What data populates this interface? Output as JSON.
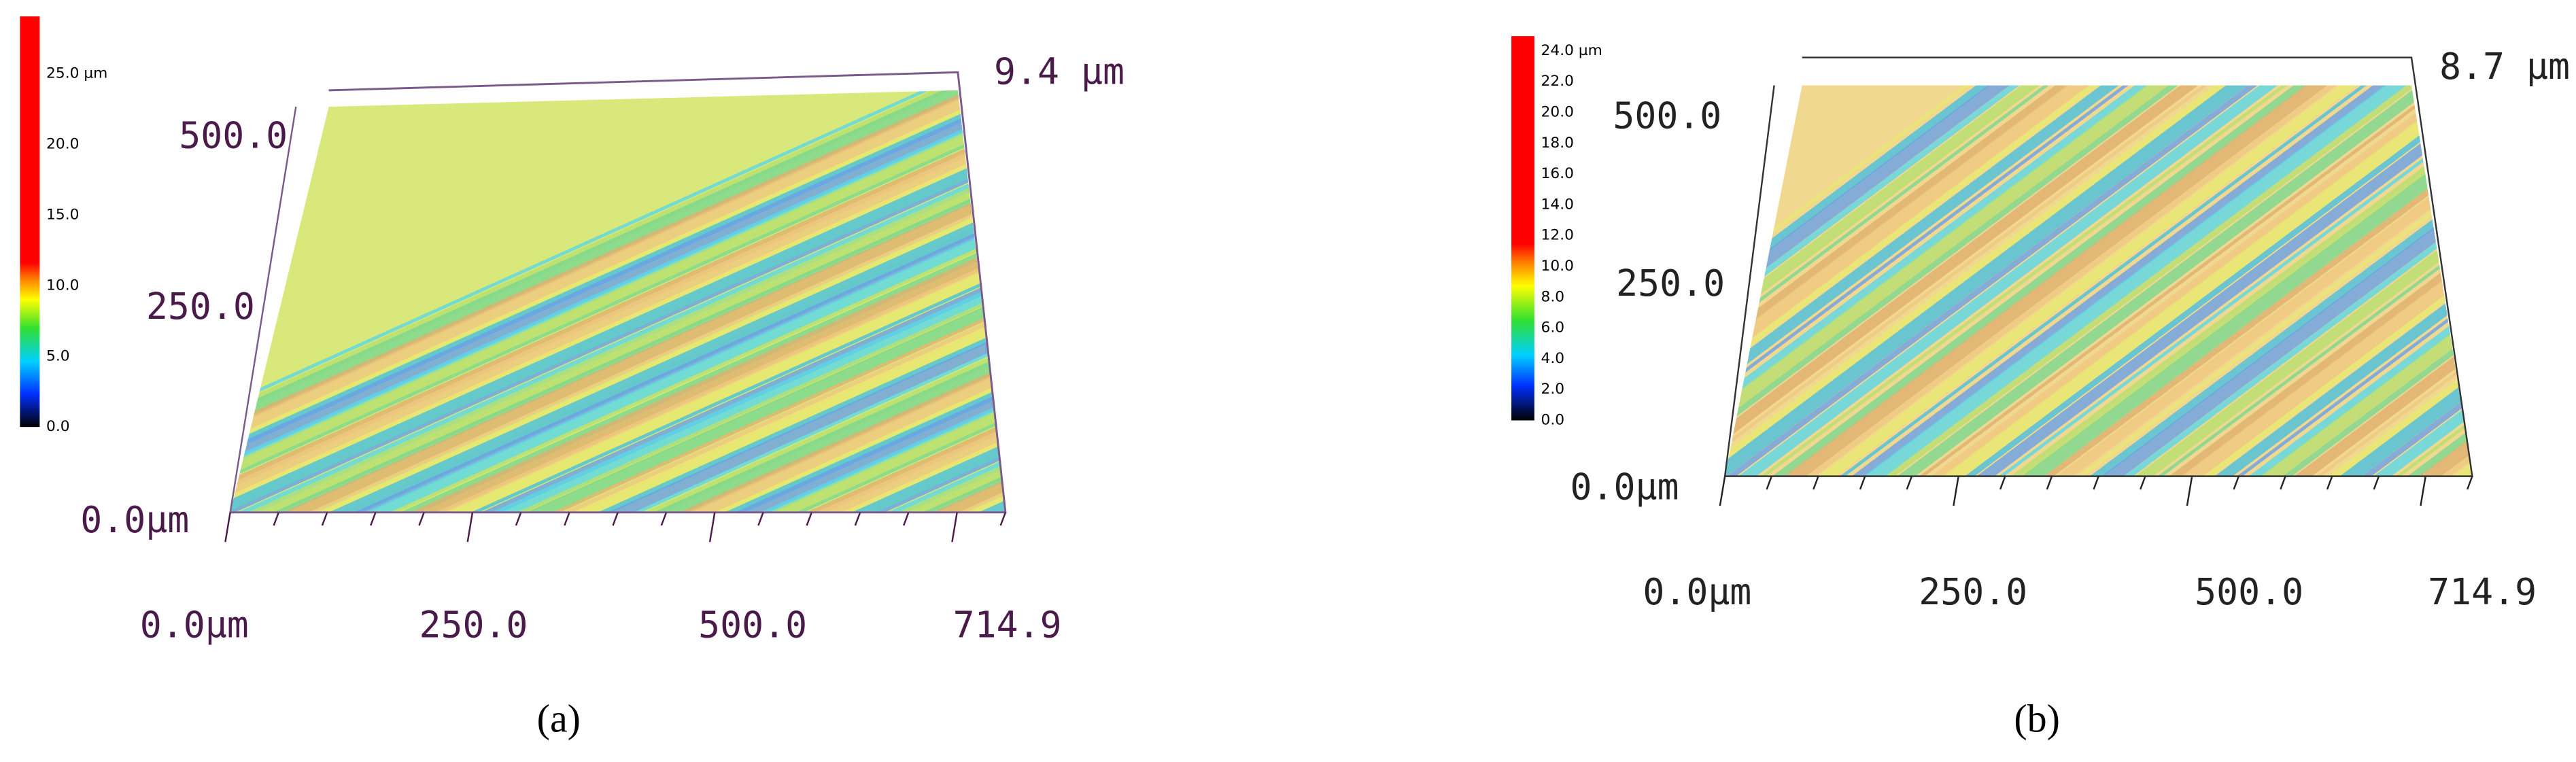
{
  "panels": [
    {
      "label": "(a)",
      "colorbar": [
        "25.0 µm",
        "20.0",
        "15.0",
        "10.0",
        "5.0",
        "0.0"
      ],
      "height": "9.4 µm",
      "y_axis": [
        "500.0",
        "250.0",
        "0.0µm"
      ],
      "x_axis": [
        "0.0µm",
        "250.0",
        "500.0",
        "714.9"
      ]
    },
    {
      "label": "(b)",
      "colorbar": [
        "24.0 µm",
        "22.0",
        "20.0",
        "18.0",
        "16.0",
        "14.0",
        "12.0",
        "10.0",
        "8.0",
        "6.0",
        "4.0",
        "2.0",
        "0.0"
      ],
      "height": "8.7 µm",
      "y_axis": [
        "500.0",
        "250.0",
        "0.0µm"
      ],
      "x_axis": [
        "0.0µm",
        "250.0",
        "500.0",
        "714.9"
      ]
    }
  ]
}
